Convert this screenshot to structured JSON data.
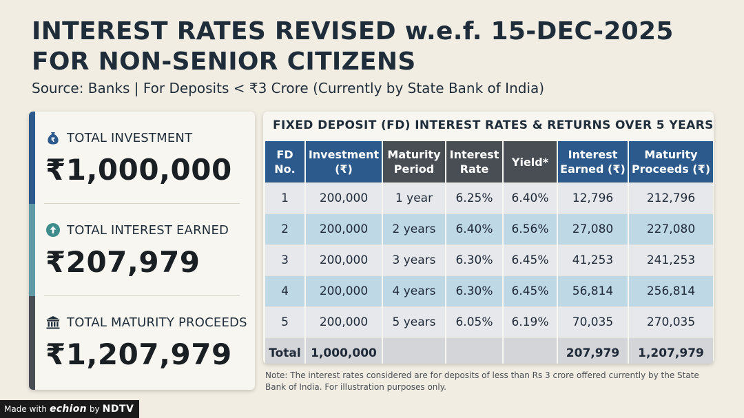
{
  "header": {
    "title_line1": "INTEREST RATES REVISED w.e.f. 15-DEC-2025",
    "title_line2": "FOR NON-SENIOR CITIZENS",
    "subtitle": "Source: Banks | For Deposits < ₹3 Crore (Currently by State Bank of India)"
  },
  "summary": {
    "cards": [
      {
        "icon": "money-bag-icon",
        "label": "TOTAL INVESTMENT",
        "value": "₹1,000,000",
        "accent": "#2d5a8c"
      },
      {
        "icon": "arrow-up-circle-icon",
        "label": "TOTAL INTEREST EARNED",
        "value": "₹207,979",
        "accent": "#5f9aa6"
      },
      {
        "icon": "bank-icon",
        "label": "TOTAL MATURITY PROCEEDS",
        "value": "₹1,207,979",
        "accent": "#494e55"
      }
    ]
  },
  "chart_data": {
    "type": "table",
    "title": "FIXED DEPOSIT (FD) INTEREST RATES & RETURNS OVER 5 YEARS",
    "columns": [
      "FD No.",
      "Investment (₹)",
      "Maturity Period",
      "Interest Rate",
      "Yield*",
      "Interest Earned (₹)",
      "Maturity Proceeds (₹)"
    ],
    "header_lines": [
      [
        "FD",
        "No."
      ],
      [
        "Investment",
        "(₹)"
      ],
      [
        "Maturity",
        "Period"
      ],
      [
        "Interest",
        "Rate"
      ],
      [
        "Yield*"
      ],
      [
        "Interest",
        "Earned (₹)"
      ],
      [
        "Maturity",
        "Proceeds (₹)"
      ]
    ],
    "rows": [
      [
        "1",
        "200,000",
        "1 year",
        "6.25%",
        "6.40%",
        "12,796",
        "212,796"
      ],
      [
        "2",
        "200,000",
        "2 years",
        "6.40%",
        "6.56%",
        "27,080",
        "227,080"
      ],
      [
        "3",
        "200,000",
        "3 years",
        "6.30%",
        "6.45%",
        "41,253",
        "241,253"
      ],
      [
        "4",
        "200,000",
        "4 years",
        "6.30%",
        "6.45%",
        "56,814",
        "256,814"
      ],
      [
        "5",
        "200,000",
        "5 years",
        "6.05%",
        "6.19%",
        "70,035",
        "270,035"
      ]
    ],
    "total_row": [
      "Total",
      "1,000,000",
      "",
      "",
      "",
      "207,979",
      "1,207,979"
    ]
  },
  "note": "Note: The interest rates considered are for deposits of less than Rs 3 crore offered currently by the State Bank of India. For illustration purposes only.",
  "footer": {
    "made_with": "Made with",
    "brand": "echion",
    "by": "by",
    "network": "NDTV"
  },
  "colors": {
    "header_blue": "#2d5a8c",
    "header_gray": "#494e55",
    "row_light": "#e6e8ec",
    "row_tinted": "#bfd8e6",
    "total_row": "#d3d5d9"
  }
}
